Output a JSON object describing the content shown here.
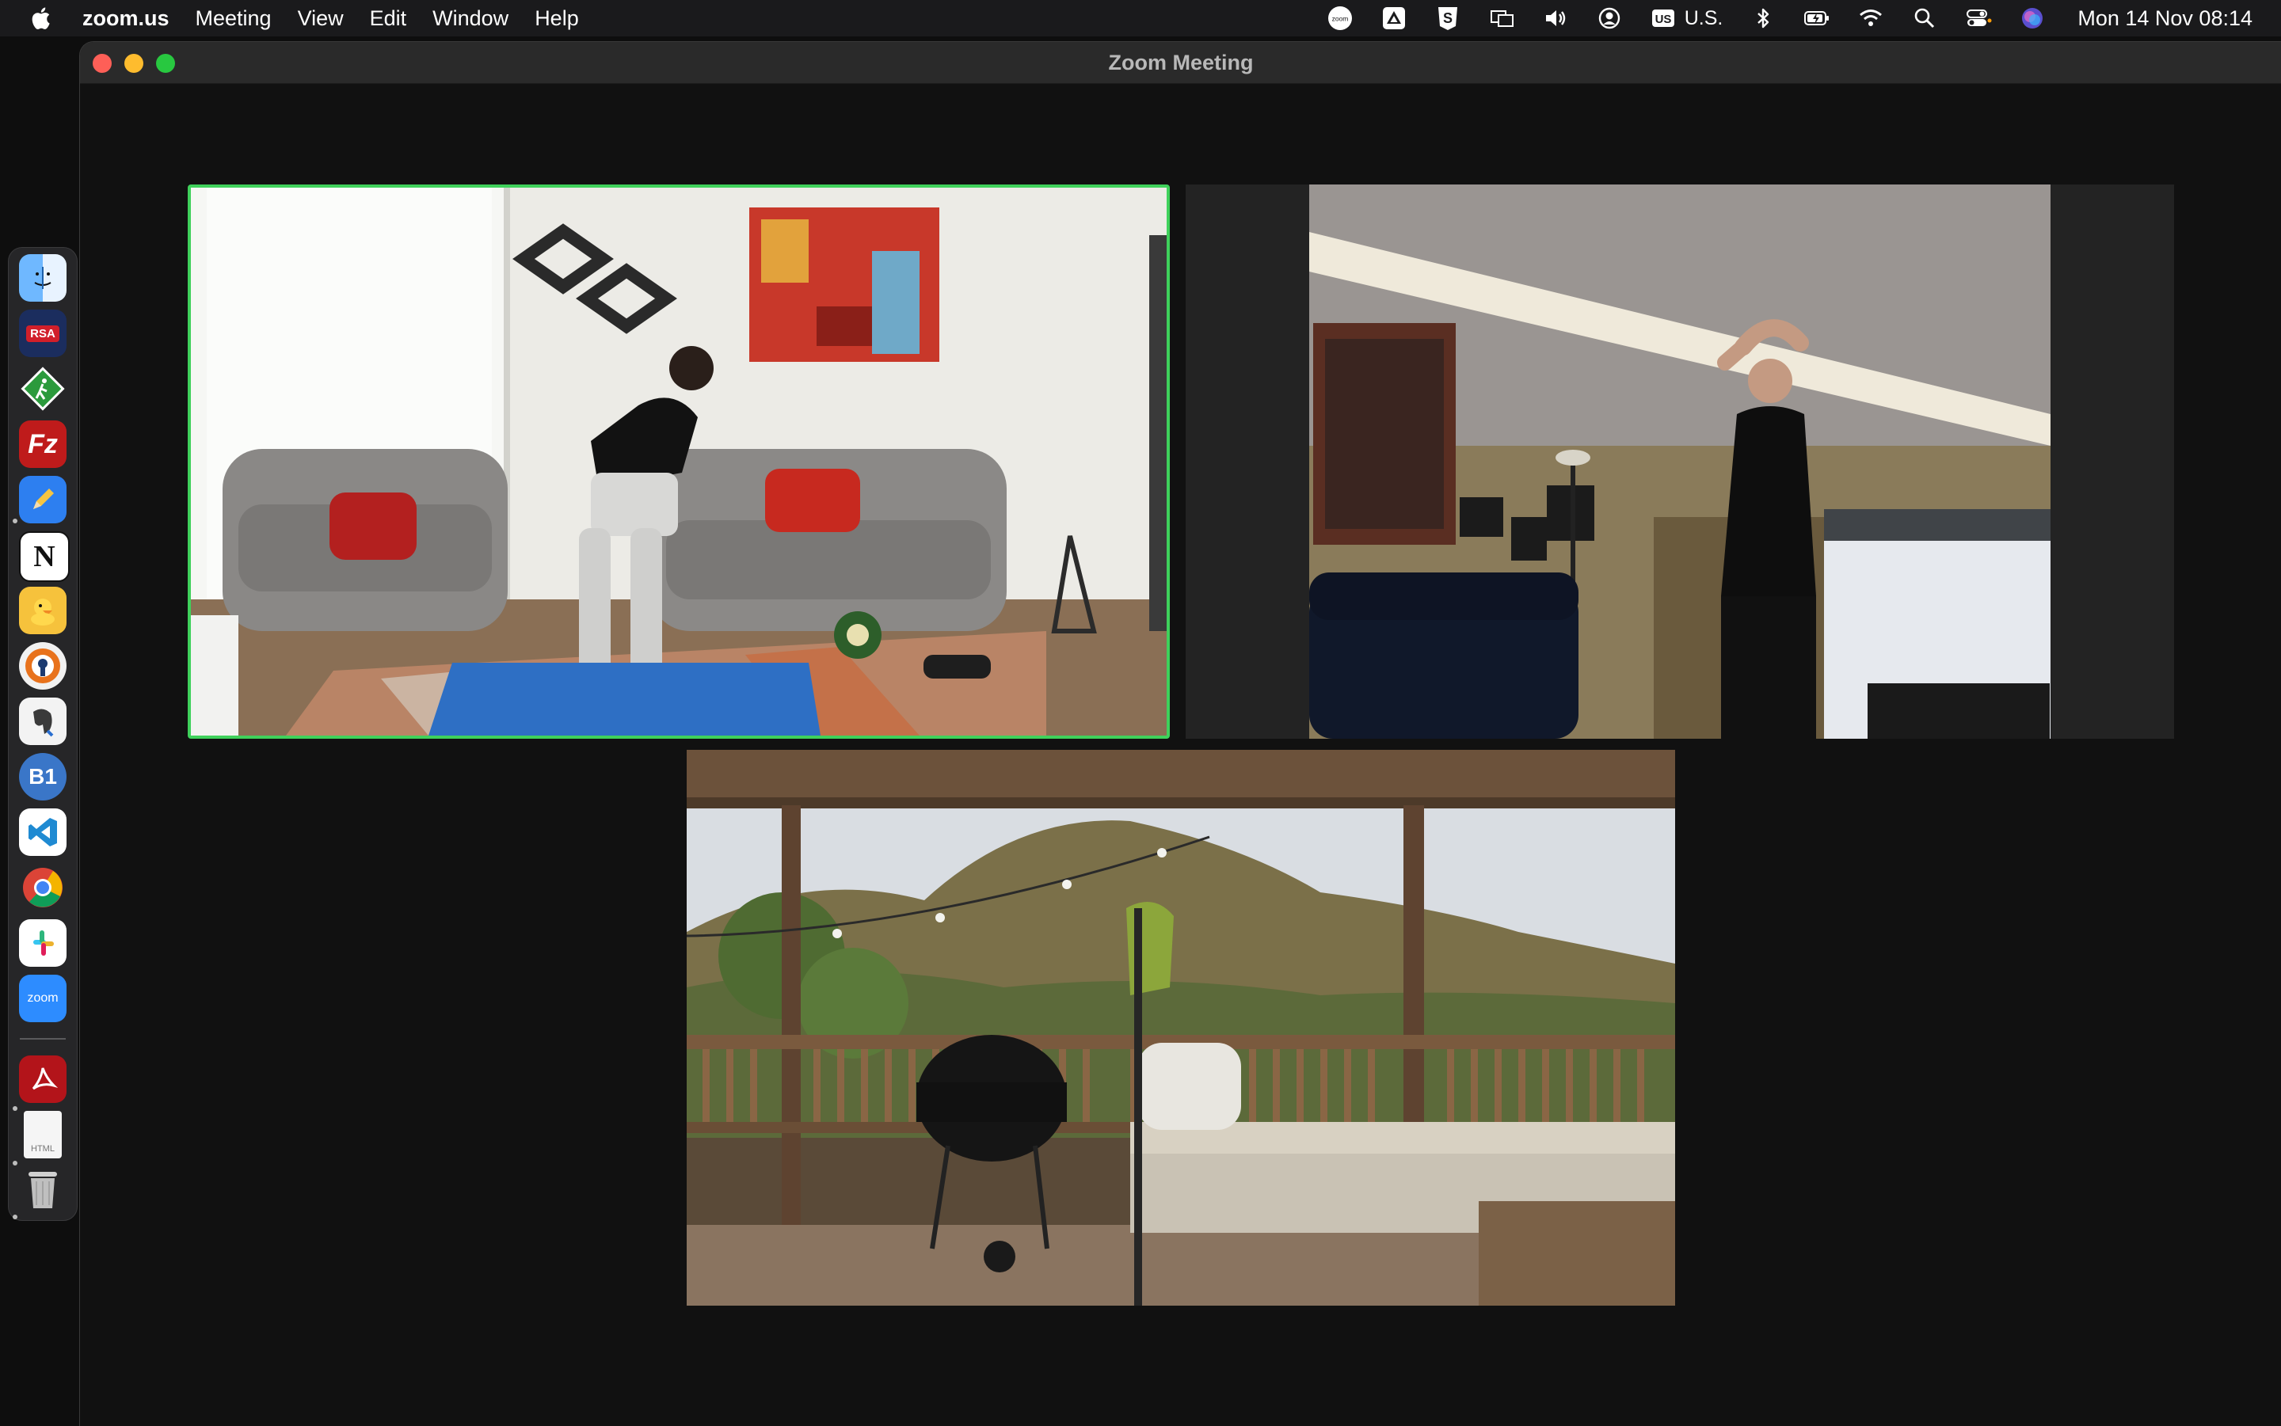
{
  "menubar": {
    "app_name": "zoom.us",
    "items": [
      "Meeting",
      "View",
      "Edit",
      "Window",
      "Help"
    ],
    "input_source": "U.S.",
    "datetime": "Mon 14 Nov  08:14",
    "zoom_status_label": "zoom",
    "keyboard_badge": "US"
  },
  "window": {
    "title": "Zoom Meeting"
  },
  "dock": {
    "items": [
      {
        "name": "Finder",
        "icon": "finder-icon"
      },
      {
        "name": "RSA SecurID",
        "icon": "rsa-securid-icon",
        "label": "RSA"
      },
      {
        "name": "Pedestrian",
        "icon": "pedestrian-sign-icon"
      },
      {
        "name": "FileZilla",
        "icon": "filezilla-icon",
        "label": "Fz"
      },
      {
        "name": "Pencil app",
        "icon": "pencil-icon"
      },
      {
        "name": "Notion",
        "icon": "notion-icon",
        "label": "N"
      },
      {
        "name": "Cyberduck",
        "icon": "duck-icon"
      },
      {
        "name": "VPN",
        "icon": "vpn-icon"
      },
      {
        "name": "Sequel",
        "icon": "elephant-icon"
      },
      {
        "name": "B1",
        "icon": "b1-icon",
        "label": "B1"
      },
      {
        "name": "Visual Studio Code",
        "icon": "vscode-icon"
      },
      {
        "name": "Google Chrome",
        "icon": "chrome-icon"
      },
      {
        "name": "Slack",
        "icon": "slack-icon"
      },
      {
        "name": "Zoom",
        "icon": "zoom-icon",
        "label": "zoom"
      },
      {
        "name": "Acrobat",
        "icon": "acrobat-icon"
      },
      {
        "name": "HTML file",
        "icon": "html-file-icon",
        "label": "HTML"
      },
      {
        "name": "Trash",
        "icon": "trash-icon"
      }
    ]
  },
  "colors": {
    "active_speaker_border": "#3fd15b",
    "window_bg": "#111111"
  }
}
